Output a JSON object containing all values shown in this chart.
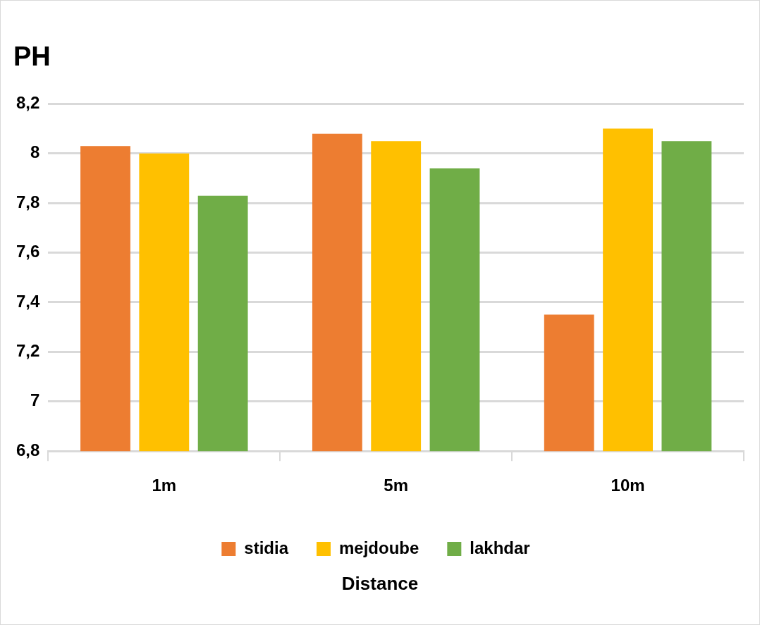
{
  "chart_data": {
    "type": "bar",
    "ylabel": "PH",
    "xlabel": "Distance",
    "categories": [
      "1m",
      "5m",
      "10m"
    ],
    "series": [
      {
        "name": "stidia",
        "color": "#ed7d31",
        "values": [
          8.03,
          8.08,
          7.35
        ]
      },
      {
        "name": "mejdoube",
        "color": "#ffc000",
        "values": [
          8.0,
          8.05,
          8.1
        ]
      },
      {
        "name": "lakhdar",
        "color": "#70ad47",
        "values": [
          7.83,
          7.94,
          8.05
        ]
      }
    ],
    "ylim": [
      6.8,
      8.2
    ],
    "yticks": [
      {
        "value": 6.8,
        "label": "6,8"
      },
      7,
      {
        "value": 7.2,
        "label": "7,2"
      },
      {
        "value": 7.4,
        "label": "7,4"
      },
      {
        "value": 7.6,
        "label": "7,6"
      },
      {
        "value": 7.8,
        "label": "7,8"
      },
      8,
      {
        "value": 8.2,
        "label": "8,2"
      }
    ],
    "grid": "y",
    "legend": "bottom"
  }
}
